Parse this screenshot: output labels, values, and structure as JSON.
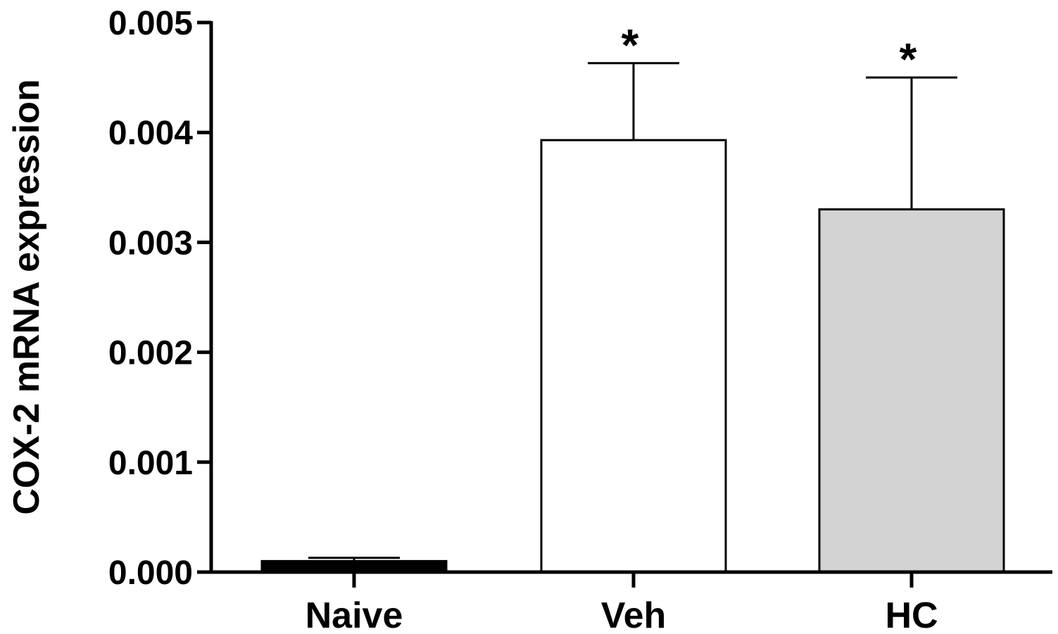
{
  "chart_data": {
    "type": "bar",
    "categories": [
      "Naive",
      "Veh",
      "HC"
    ],
    "values": [
      0.0001,
      0.00393,
      0.0033
    ],
    "errors": [
      3e-05,
      0.0007,
      0.0012
    ],
    "annotations": [
      "",
      "*",
      "*"
    ],
    "bar_colors": [
      "#000000",
      "#ffffff",
      "#d3d3d3"
    ],
    "title": "",
    "xlabel": "",
    "ylabel": "COX-2 mRNA expression",
    "ylim": [
      0,
      0.005
    ],
    "yticks": [
      "0.000",
      "0.001",
      "0.002",
      "0.003",
      "0.004",
      "0.005"
    ],
    "grid": false,
    "legend": "none"
  }
}
